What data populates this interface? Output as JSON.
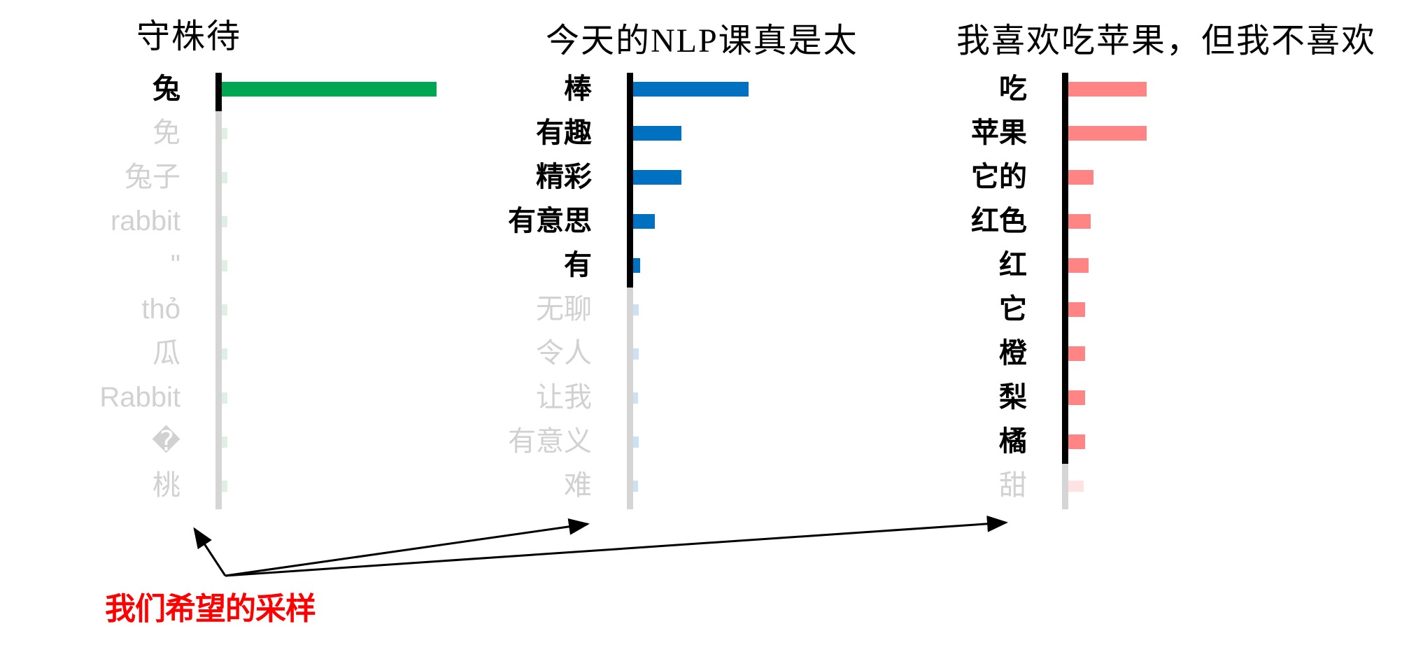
{
  "chart_data": [
    {
      "type": "bar",
      "orientation": "horizontal",
      "title": "守株待",
      "bar_color": "#00A651",
      "faded_bar_color": "#DEEFE3",
      "tokens": [
        {
          "label": "兔",
          "value": 0.93,
          "sampled": true
        },
        {
          "label": "免",
          "value": 0.025,
          "sampled": false
        },
        {
          "label": "兔子",
          "value": 0.025,
          "sampled": false
        },
        {
          "label": "rabbit",
          "value": 0.025,
          "sampled": false
        },
        {
          "label": "\"",
          "value": 0.025,
          "sampled": false
        },
        {
          "label": "thỏ",
          "value": 0.025,
          "sampled": false
        },
        {
          "label": "瓜",
          "value": 0.025,
          "sampled": false
        },
        {
          "label": "Rabbit",
          "value": 0.025,
          "sampled": false
        },
        {
          "label": "�",
          "value": 0.025,
          "sampled": false
        },
        {
          "label": "桃",
          "value": 0.025,
          "sampled": false
        }
      ]
    },
    {
      "type": "bar",
      "orientation": "horizontal",
      "title": "今天的NLP课真是太",
      "bar_color": "#0071C1",
      "faded_bar_color": "#CCE1F3",
      "tokens": [
        {
          "label": "棒",
          "value": 0.5,
          "sampled": true
        },
        {
          "label": "有趣",
          "value": 0.21,
          "sampled": true
        },
        {
          "label": "精彩",
          "value": 0.21,
          "sampled": true
        },
        {
          "label": "有意思",
          "value": 0.095,
          "sampled": true
        },
        {
          "label": "有",
          "value": 0.03,
          "sampled": true
        },
        {
          "label": "无聊",
          "value": 0.025,
          "sampled": false
        },
        {
          "label": "令人",
          "value": 0.025,
          "sampled": false
        },
        {
          "label": "让我",
          "value": 0.022,
          "sampled": false
        },
        {
          "label": "有意义",
          "value": 0.025,
          "sampled": false
        },
        {
          "label": "难",
          "value": 0.022,
          "sampled": false
        }
      ]
    },
    {
      "type": "bar",
      "orientation": "horizontal",
      "title": "我喜欢吃苹果，但我不喜欢",
      "bar_color": "#FF8585",
      "faded_bar_color": "#FFE3E3",
      "tokens": [
        {
          "label": "吃",
          "value": 0.34,
          "sampled": true
        },
        {
          "label": "苹果",
          "value": 0.34,
          "sampled": true
        },
        {
          "label": "它的",
          "value": 0.11,
          "sampled": true
        },
        {
          "label": "红色",
          "value": 0.098,
          "sampled": true
        },
        {
          "label": "红",
          "value": 0.088,
          "sampled": true
        },
        {
          "label": "它",
          "value": 0.073,
          "sampled": true
        },
        {
          "label": "橙",
          "value": 0.073,
          "sampled": true
        },
        {
          "label": "梨",
          "value": 0.073,
          "sampled": true
        },
        {
          "label": "橘",
          "value": 0.073,
          "sampled": true
        },
        {
          "label": "甜",
          "value": 0.067,
          "sampled": false
        }
      ]
    }
  ],
  "annotation": {
    "text": "我们希望的采样",
    "color": "#FF0000"
  },
  "colors": {
    "axis_sampled": "#000000",
    "axis_unsampled": "#D5D5D5",
    "label_sampled": "#000000",
    "label_faded": "#D1D1D1",
    "arrow": "#000000"
  }
}
